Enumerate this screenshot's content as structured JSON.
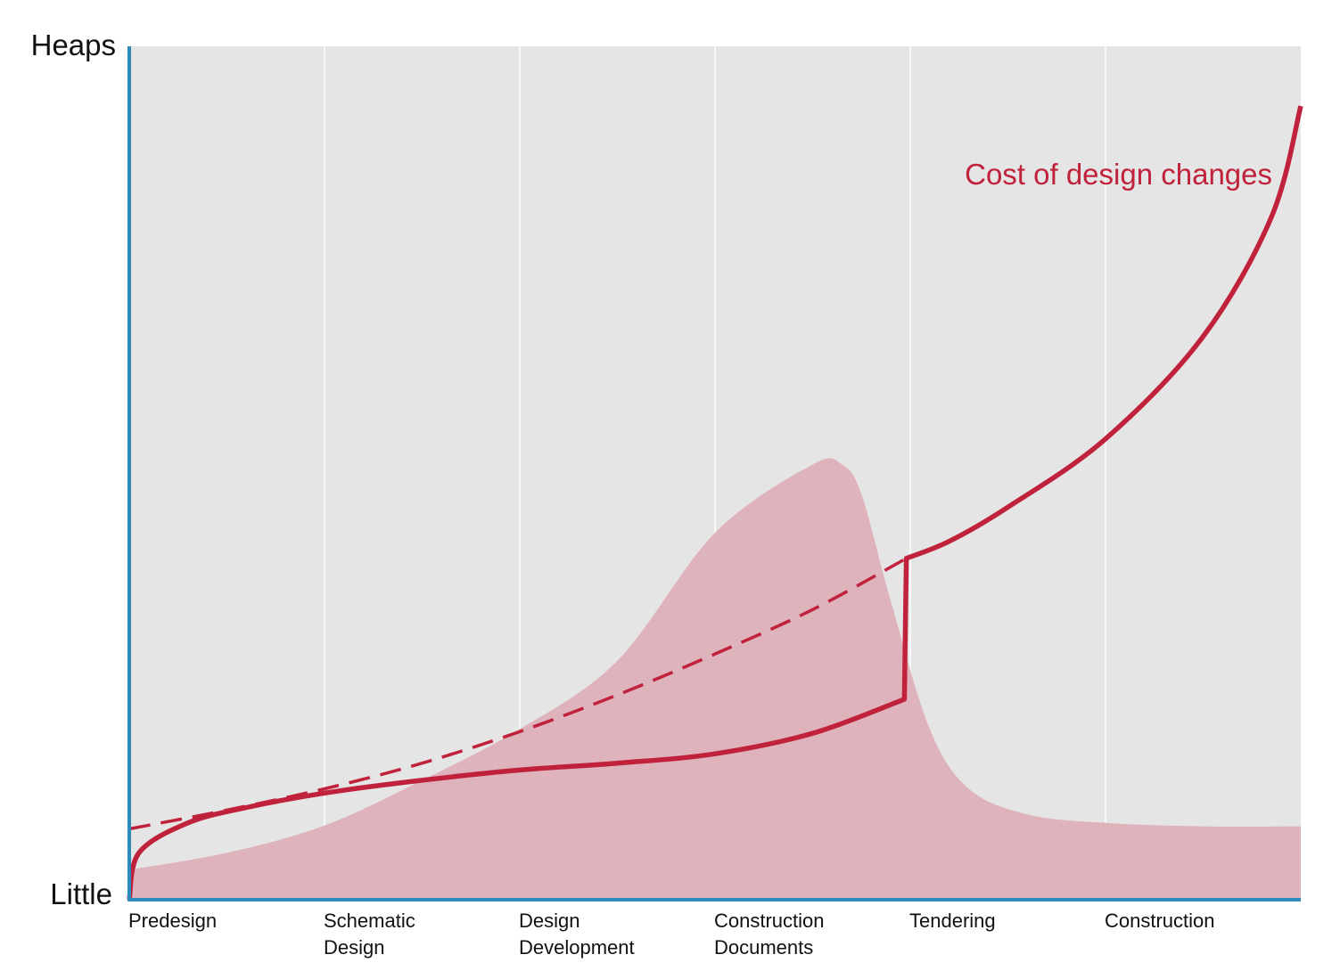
{
  "chart_data": {
    "type": "area",
    "title": "",
    "xlabel": "",
    "ylabel": "",
    "y_axis_labels": {
      "top": "Heaps",
      "bottom": "Little"
    },
    "categories": [
      [
        "Predesign"
      ],
      [
        "Schematic",
        "Design"
      ],
      [
        "Design",
        "Development"
      ],
      [
        "Construction",
        "Documents"
      ],
      [
        "Tendering"
      ],
      [
        "Construction"
      ]
    ],
    "xlim": [
      0,
      6
    ],
    "ylim": [
      0,
      100
    ],
    "grid": "vertical",
    "annotations": [
      {
        "text": "Cost of design changes",
        "series": "cost_curve"
      }
    ],
    "series": [
      {
        "id": "area_shape",
        "kind": "area",
        "color": "#dfb3bb",
        "points": [
          [
            0,
            3.5
          ],
          [
            0.5,
            5.5
          ],
          [
            1,
            8.7
          ],
          [
            1.5,
            14
          ],
          [
            2,
            20
          ],
          [
            2.5,
            28
          ],
          [
            3,
            43
          ],
          [
            3.5,
            51
          ],
          [
            3.65,
            51
          ],
          [
            3.75,
            47.5
          ],
          [
            3.9,
            35
          ],
          [
            4.1,
            20
          ],
          [
            4.3,
            13
          ],
          [
            4.6,
            10
          ],
          [
            5,
            9
          ],
          [
            5.5,
            8.6
          ],
          [
            6,
            8.6
          ]
        ]
      },
      {
        "id": "cost_curve",
        "kind": "line",
        "style": "solid",
        "color": "#c0223c",
        "points": [
          [
            0,
            0
          ],
          [
            0.05,
            5.5
          ],
          [
            0.3,
            9
          ],
          [
            0.6,
            10.8
          ],
          [
            1,
            12.5
          ],
          [
            1.5,
            14
          ],
          [
            2,
            15.2
          ],
          [
            2.5,
            16
          ],
          [
            3,
            17.1
          ],
          [
            3.5,
            19.5
          ],
          [
            3.97,
            23.5
          ],
          [
            3.98,
            40
          ],
          [
            4.2,
            42
          ],
          [
            4.5,
            46
          ],
          [
            5,
            54
          ],
          [
            5.5,
            66
          ],
          [
            5.85,
            80
          ],
          [
            6,
            93
          ]
        ]
      },
      {
        "id": "dashed_curve",
        "kind": "line",
        "style": "dashed",
        "color": "#c0223c",
        "points": [
          [
            0,
            8.3
          ],
          [
            0.5,
            10.5
          ],
          [
            1,
            13
          ],
          [
            1.5,
            16
          ],
          [
            2,
            19.7
          ],
          [
            2.5,
            24
          ],
          [
            3,
            28.8
          ],
          [
            3.5,
            34
          ],
          [
            3.98,
            40
          ]
        ]
      }
    ],
    "colors": {
      "plot_background": "#e5e5e5",
      "axis": "#2b8bbd",
      "gridline": "#f7f7f7",
      "curve": "#c0223c",
      "area": "#dfb3bb"
    }
  }
}
